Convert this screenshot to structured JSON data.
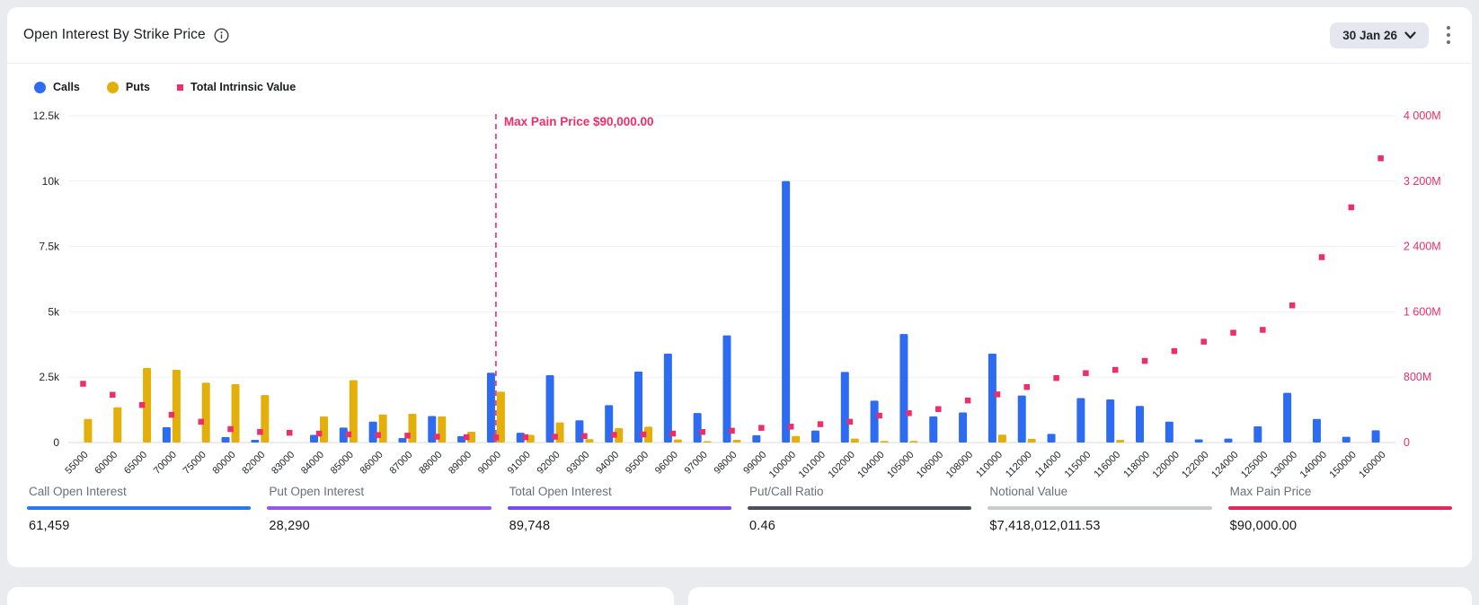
{
  "header": {
    "title": "Open Interest By Strike Price",
    "expiry_selected": "30 Jan 26"
  },
  "legend": [
    {
      "label": "Calls",
      "color": "#2D6BF0",
      "shape": "circle"
    },
    {
      "label": "Puts",
      "color": "#E3AF0A",
      "shape": "circle"
    },
    {
      "label": "Total Intrinsic Value",
      "color": "#ED2E68",
      "shape": "square"
    }
  ],
  "chart_data": {
    "type": "bar",
    "title": "Open Interest By Strike Price",
    "categories": [
      "55000",
      "60000",
      "65000",
      "70000",
      "75000",
      "80000",
      "82000",
      "83000",
      "84000",
      "85000",
      "86000",
      "87000",
      "88000",
      "89000",
      "90000",
      "91000",
      "92000",
      "93000",
      "94000",
      "95000",
      "96000",
      "97000",
      "98000",
      "99000",
      "100000",
      "101000",
      "102000",
      "104000",
      "105000",
      "106000",
      "108000",
      "110000",
      "112000",
      "114000",
      "115000",
      "116000",
      "118000",
      "120000",
      "122000",
      "124000",
      "125000",
      "130000",
      "140000",
      "150000",
      "160000"
    ],
    "series": [
      {
        "name": "Calls",
        "type": "bar",
        "axis": "left",
        "color": "#2D6BF0",
        "values": [
          0,
          0,
          0,
          590,
          0,
          210,
          105,
          0,
          290,
          570,
          800,
          170,
          1015,
          245,
          2670,
          375,
          2575,
          850,
          1430,
          2715,
          3400,
          1130,
          4100,
          280,
          10000,
          460,
          2700,
          1600,
          4150,
          1000,
          1150,
          3400,
          1800,
          330,
          1700,
          1650,
          1400,
          800,
          120,
          150,
          620,
          1900,
          900,
          220,
          470
        ]
      },
      {
        "name": "Puts",
        "type": "bar",
        "axis": "left",
        "color": "#E3AF0A",
        "values": [
          900,
          1350,
          2850,
          2780,
          2290,
          2230,
          1815,
          0,
          1000,
          2385,
          1075,
          1100,
          1000,
          410,
          1945,
          290,
          770,
          130,
          550,
          605,
          115,
          50,
          105,
          0,
          250,
          0,
          150,
          60,
          60,
          0,
          0,
          300,
          140,
          0,
          0,
          100,
          0,
          0,
          0,
          0,
          0,
          0,
          0,
          0,
          0
        ]
      },
      {
        "name": "Total Intrinsic Value",
        "type": "scatter",
        "axis": "right",
        "color": "#ED2E68",
        "values": [
          720,
          585,
          460,
          340,
          255,
          165,
          130,
          120,
          110,
          100,
          92,
          85,
          72,
          66,
          62,
          66,
          72,
          80,
          95,
          100,
          110,
          130,
          145,
          180,
          195,
          225,
          255,
          330,
          360,
          410,
          515,
          590,
          680,
          790,
          850,
          890,
          1000,
          1120,
          1235,
          1345,
          1380,
          1680,
          2270,
          2880,
          3480
        ]
      }
    ],
    "left_axis": {
      "ticks": [
        "0",
        "2.5k",
        "5k",
        "7.5k",
        "10k",
        "12.5k"
      ],
      "min": 0,
      "max": 12500,
      "color": "#23262b"
    },
    "right_axis": {
      "ticks": [
        "0",
        "800M",
        "1 600M",
        "2 400M",
        "3 200M",
        "4 000M"
      ],
      "min": 0,
      "max": 4000,
      "color": "#ED2E68"
    },
    "annotation": {
      "label": "Max Pain Price $90,000.00",
      "strike": "90000",
      "color": "#ED2E68"
    },
    "grid": true,
    "legend_position": "top-left"
  },
  "stats": [
    {
      "label": "Call Open Interest",
      "value": "61,459",
      "accent": "#2979F2"
    },
    {
      "label": "Put Open Interest",
      "value": "28,290",
      "accent": "#9157F2"
    },
    {
      "label": "Total Open Interest",
      "value": "89,748",
      "accent": "#7B49EC"
    },
    {
      "label": "Put/Call Ratio",
      "value": "0.46",
      "accent": "#49525C"
    },
    {
      "label": "Notional Value",
      "value": "$7,418,012,011.53",
      "accent": "#C9CDD0"
    },
    {
      "label": "Max Pain Price",
      "value": "$90,000.00",
      "accent": "#E6275A"
    }
  ]
}
